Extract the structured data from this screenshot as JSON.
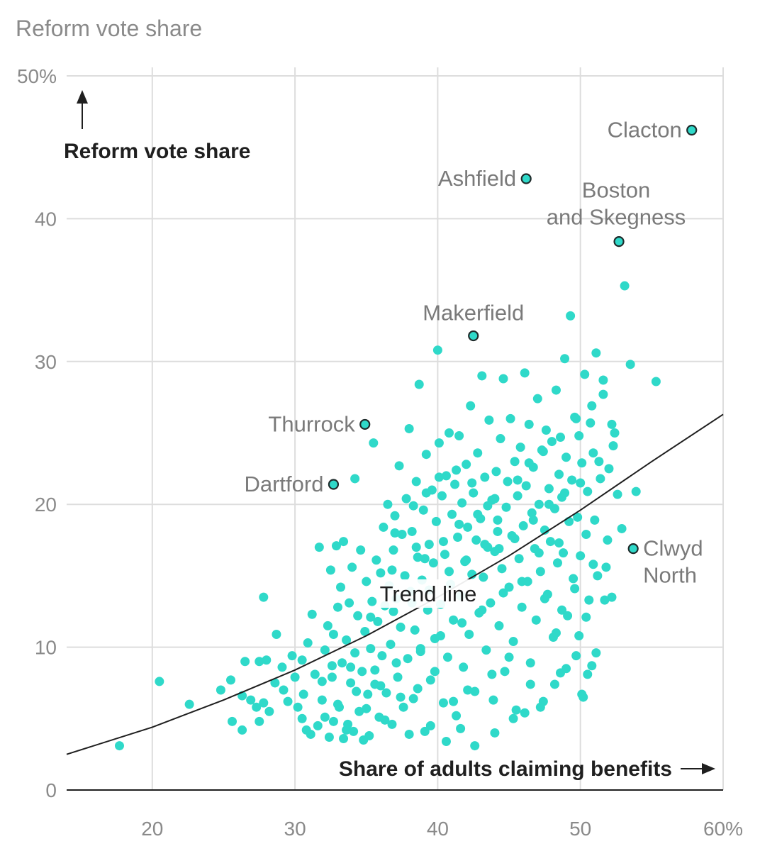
{
  "chart_data": {
    "type": "scatter",
    "title": "Reform vote share",
    "ylabel": "Reform vote share",
    "xlabel": "Share of adults claiming benefits",
    "xlim": [
      14,
      60
    ],
    "ylim": [
      0,
      50
    ],
    "x_ticks": [
      {
        "value": 20,
        "label": "20"
      },
      {
        "value": 30,
        "label": "30"
      },
      {
        "value": 40,
        "label": "40"
      },
      {
        "value": 50,
        "label": "50"
      },
      {
        "value": 60,
        "label": "60%"
      }
    ],
    "y_ticks": [
      {
        "value": 0,
        "label": "0"
      },
      {
        "value": 10,
        "label": "10"
      },
      {
        "value": 20,
        "label": "20"
      },
      {
        "value": 30,
        "label": "30"
      },
      {
        "value": 40,
        "label": "40"
      },
      {
        "value": 50,
        "label": "50%"
      }
    ],
    "grid": true,
    "colors": {
      "point": "#2fd9c9",
      "point_outline": "#1f2b2b",
      "trend": "#1f1f1f",
      "grid": "#dddddd",
      "axis": "#1f1f1f",
      "label": "#7a7a7a"
    },
    "trend_label": "Trend line",
    "trend_line": [
      [
        14,
        2.5
      ],
      [
        20,
        4.4
      ],
      [
        25,
        6.3
      ],
      [
        30,
        8.4
      ],
      [
        35,
        10.8
      ],
      [
        40,
        13.5
      ],
      [
        45,
        16.4
      ],
      [
        50,
        19.6
      ],
      [
        55,
        23.0
      ],
      [
        60,
        26.3
      ]
    ],
    "highlighted": [
      {
        "name": "Clacton",
        "lines": [
          "Clacton"
        ],
        "x": 57.8,
        "y": 46.2
      },
      {
        "name": "Ashfield",
        "lines": [
          "Ashfield"
        ],
        "x": 46.2,
        "y": 42.8
      },
      {
        "name": "Boston and Skegness",
        "lines": [
          "Boston",
          "and Skegness"
        ],
        "x": 52.7,
        "y": 38.4
      },
      {
        "name": "Makerfield",
        "lines": [
          "Makerfield"
        ],
        "x": 42.5,
        "y": 31.8
      },
      {
        "name": "Thurrock",
        "lines": [
          "Thurrock"
        ],
        "x": 34.9,
        "y": 25.6
      },
      {
        "name": "Dartford",
        "lines": [
          "Dartford"
        ],
        "x": 32.7,
        "y": 21.4
      },
      {
        "name": "Clwyd North",
        "lines": [
          "Clwyd",
          "North"
        ],
        "x": 53.7,
        "y": 16.9
      }
    ],
    "points": [
      [
        17.7,
        3.1
      ],
      [
        20.5,
        7.6
      ],
      [
        22.6,
        6.0
      ],
      [
        24.8,
        7.0
      ],
      [
        25.5,
        7.7
      ],
      [
        25.6,
        4.8
      ],
      [
        26.3,
        6.6
      ],
      [
        26.3,
        4.2
      ],
      [
        26.5,
        9.0
      ],
      [
        26.9,
        6.3
      ],
      [
        27.3,
        5.8
      ],
      [
        27.5,
        9.0
      ],
      [
        27.5,
        4.8
      ],
      [
        27.8,
        6.1
      ],
      [
        27.8,
        13.5
      ],
      [
        28.0,
        9.1
      ],
      [
        28.2,
        5.5
      ],
      [
        28.6,
        7.5
      ],
      [
        28.7,
        10.9
      ],
      [
        29.1,
        8.6
      ],
      [
        29.2,
        7.0
      ],
      [
        29.5,
        6.2
      ],
      [
        29.8,
        9.4
      ],
      [
        30.0,
        7.9
      ],
      [
        30.2,
        5.8
      ],
      [
        30.5,
        9.1
      ],
      [
        30.6,
        6.7
      ],
      [
        30.8,
        4.2
      ],
      [
        30.9,
        10.3
      ],
      [
        31.1,
        3.9
      ],
      [
        31.2,
        12.3
      ],
      [
        31.4,
        8.1
      ],
      [
        31.6,
        4.5
      ],
      [
        31.7,
        17.0
      ],
      [
        31.9,
        7.6
      ],
      [
        32.1,
        9.8
      ],
      [
        32.1,
        5.1
      ],
      [
        32.3,
        11.5
      ],
      [
        32.4,
        3.7
      ],
      [
        32.5,
        15.4
      ],
      [
        32.6,
        8.7
      ],
      [
        32.7,
        4.8
      ],
      [
        32.7,
        10.9
      ],
      [
        32.9,
        17.1
      ],
      [
        33.0,
        12.8
      ],
      [
        33.0,
        6.0
      ],
      [
        33.2,
        14.2
      ],
      [
        33.3,
        8.9
      ],
      [
        33.4,
        3.6
      ],
      [
        33.4,
        17.4
      ],
      [
        33.6,
        10.5
      ],
      [
        33.7,
        4.6
      ],
      [
        33.8,
        13.1
      ],
      [
        33.9,
        7.5
      ],
      [
        34.0,
        15.6
      ],
      [
        34.1,
        4.1
      ],
      [
        34.2,
        9.6
      ],
      [
        34.2,
        21.8
      ],
      [
        34.4,
        12.2
      ],
      [
        34.5,
        5.5
      ],
      [
        34.6,
        16.8
      ],
      [
        34.7,
        8.3
      ],
      [
        34.9,
        11.1
      ],
      [
        35.0,
        14.6
      ],
      [
        35.1,
        6.7
      ],
      [
        35.2,
        3.8
      ],
      [
        35.3,
        9.9
      ],
      [
        35.4,
        13.2
      ],
      [
        35.5,
        24.3
      ],
      [
        35.6,
        7.4
      ],
      [
        35.7,
        16.1
      ],
      [
        35.8,
        11.8
      ],
      [
        35.9,
        5.1
      ],
      [
        36.0,
        15.2
      ],
      [
        36.1,
        9.4
      ],
      [
        36.2,
        18.4
      ],
      [
        36.3,
        12.9
      ],
      [
        36.4,
        6.8
      ],
      [
        36.5,
        20.0
      ],
      [
        36.6,
        14.3
      ],
      [
        36.7,
        10.2
      ],
      [
        36.8,
        4.6
      ],
      [
        36.9,
        16.8
      ],
      [
        37.0,
        19.2
      ],
      [
        37.1,
        13.4
      ],
      [
        37.2,
        7.9
      ],
      [
        37.3,
        22.7
      ],
      [
        37.4,
        11.4
      ],
      [
        37.5,
        17.9
      ],
      [
        37.6,
        5.8
      ],
      [
        37.7,
        15.0
      ],
      [
        37.8,
        20.4
      ],
      [
        37.9,
        9.2
      ],
      [
        38.0,
        25.3
      ],
      [
        38.1,
        13.9
      ],
      [
        38.2,
        18.1
      ],
      [
        38.3,
        6.4
      ],
      [
        38.4,
        11.2
      ],
      [
        38.5,
        21.6
      ],
      [
        38.6,
        16.3
      ],
      [
        38.7,
        28.4
      ],
      [
        38.8,
        9.7
      ],
      [
        38.9,
        14.7
      ],
      [
        39.0,
        19.6
      ],
      [
        39.1,
        4.1
      ],
      [
        39.2,
        23.5
      ],
      [
        39.3,
        12.6
      ],
      [
        39.4,
        17.2
      ],
      [
        39.5,
        7.7
      ],
      [
        39.6,
        21.0
      ],
      [
        39.7,
        15.9
      ],
      [
        39.8,
        10.6
      ],
      [
        39.9,
        18.8
      ],
      [
        40.0,
        30.8
      ],
      [
        40.1,
        24.3
      ],
      [
        40.2,
        13.0
      ],
      [
        40.3,
        20.6
      ],
      [
        40.4,
        6.1
      ],
      [
        40.5,
        16.5
      ],
      [
        40.6,
        22.0
      ],
      [
        40.7,
        9.3
      ],
      [
        40.8,
        25.0
      ],
      [
        40.9,
        14.4
      ],
      [
        41.0,
        19.3
      ],
      [
        41.1,
        11.9
      ],
      [
        41.2,
        21.4
      ],
      [
        41.3,
        5.2
      ],
      [
        41.4,
        17.7
      ],
      [
        41.5,
        24.8
      ],
      [
        41.6,
        13.6
      ],
      [
        41.7,
        20.1
      ],
      [
        41.8,
        8.6
      ],
      [
        41.9,
        16.0
      ],
      [
        42.0,
        22.8
      ],
      [
        42.1,
        18.4
      ],
      [
        42.2,
        10.9
      ],
      [
        42.3,
        26.9
      ],
      [
        42.4,
        15.1
      ],
      [
        42.5,
        20.8
      ],
      [
        42.6,
        6.9
      ],
      [
        42.7,
        17.5
      ],
      [
        42.8,
        23.6
      ],
      [
        42.9,
        12.4
      ],
      [
        43.0,
        19.0
      ],
      [
        43.1,
        29.0
      ],
      [
        43.2,
        14.9
      ],
      [
        43.3,
        21.9
      ],
      [
        43.4,
        9.8
      ],
      [
        43.5,
        17.0
      ],
      [
        43.6,
        25.9
      ],
      [
        43.7,
        13.1
      ],
      [
        43.8,
        20.3
      ],
      [
        43.9,
        6.3
      ],
      [
        44.0,
        16.7
      ],
      [
        44.1,
        22.3
      ],
      [
        44.2,
        18.9
      ],
      [
        44.3,
        11.5
      ],
      [
        44.4,
        24.6
      ],
      [
        44.5,
        15.5
      ],
      [
        44.6,
        28.8
      ],
      [
        44.7,
        8.3
      ],
      [
        44.8,
        19.8
      ],
      [
        44.9,
        21.6
      ],
      [
        45.0,
        14.2
      ],
      [
        45.1,
        26.0
      ],
      [
        45.2,
        17.8
      ],
      [
        45.3,
        10.4
      ],
      [
        45.4,
        23.0
      ],
      [
        45.5,
        5.6
      ],
      [
        45.6,
        20.6
      ],
      [
        45.7,
        16.2
      ],
      [
        45.8,
        24.0
      ],
      [
        45.9,
        12.8
      ],
      [
        46.0,
        18.5
      ],
      [
        46.1,
        29.2
      ],
      [
        46.2,
        21.3
      ],
      [
        46.3,
        14.6
      ],
      [
        46.4,
        25.6
      ],
      [
        46.5,
        8.9
      ],
      [
        46.6,
        19.4
      ],
      [
        46.7,
        22.6
      ],
      [
        46.8,
        16.9
      ],
      [
        46.9,
        11.9
      ],
      [
        47.0,
        27.4
      ],
      [
        47.1,
        20.0
      ],
      [
        47.2,
        15.3
      ],
      [
        47.3,
        23.8
      ],
      [
        47.4,
        6.2
      ],
      [
        47.5,
        18.2
      ],
      [
        47.6,
        25.2
      ],
      [
        47.7,
        13.7
      ],
      [
        47.8,
        21.1
      ],
      [
        47.9,
        17.4
      ],
      [
        48.0,
        24.4
      ],
      [
        48.1,
        10.7
      ],
      [
        48.2,
        19.7
      ],
      [
        48.3,
        28.0
      ],
      [
        48.4,
        15.9
      ],
      [
        48.5,
        22.1
      ],
      [
        48.6,
        8.2
      ],
      [
        48.7,
        20.5
      ],
      [
        48.8,
        16.6
      ],
      [
        48.9,
        30.2
      ],
      [
        49.0,
        23.3
      ],
      [
        49.1,
        12.2
      ],
      [
        49.2,
        18.8
      ],
      [
        49.3,
        33.2
      ],
      [
        49.4,
        21.7
      ],
      [
        49.5,
        14.8
      ],
      [
        49.6,
        26.1
      ],
      [
        49.7,
        9.4
      ],
      [
        49.8,
        19.1
      ],
      [
        49.9,
        24.8
      ],
      [
        50.0,
        16.4
      ],
      [
        50.1,
        22.9
      ],
      [
        50.2,
        6.5
      ],
      [
        50.3,
        29.1
      ],
      [
        50.4,
        17.9
      ],
      [
        50.5,
        20.9
      ],
      [
        50.6,
        13.3
      ],
      [
        50.7,
        25.7
      ],
      [
        50.8,
        8.7
      ],
      [
        50.9,
        23.6
      ],
      [
        51.0,
        18.9
      ],
      [
        51.1,
        30.6
      ],
      [
        51.2,
        15.0
      ],
      [
        51.4,
        21.8
      ],
      [
        51.6,
        28.7
      ],
      [
        51.8,
        15.6
      ],
      [
        52.0,
        22.5
      ],
      [
        52.2,
        13.5
      ],
      [
        52.4,
        25.0
      ],
      [
        52.6,
        20.7
      ],
      [
        53.1,
        35.3
      ],
      [
        53.5,
        29.8
      ],
      [
        53.9,
        20.9
      ],
      [
        55.3,
        28.6
      ],
      [
        33.6,
        4.2
      ],
      [
        34.8,
        3.5
      ],
      [
        36.3,
        4.9
      ],
      [
        38.0,
        3.9
      ],
      [
        39.5,
        4.5
      ],
      [
        40.6,
        3.4
      ],
      [
        41.6,
        4.3
      ],
      [
        42.6,
        3.1
      ],
      [
        44.0,
        4.0
      ],
      [
        45.3,
        5.0
      ],
      [
        46.1,
        5.4
      ],
      [
        47.2,
        5.8
      ],
      [
        48.2,
        7.4
      ],
      [
        49.0,
        8.5
      ],
      [
        50.1,
        6.7
      ],
      [
        50.5,
        8.1
      ],
      [
        51.1,
        9.6
      ],
      [
        47.5,
        13.4
      ],
      [
        48.7,
        12.6
      ],
      [
        50.4,
        12.1
      ],
      [
        51.7,
        13.3
      ],
      [
        49.9,
        10.8
      ],
      [
        48.3,
        11.0
      ],
      [
        46.5,
        7.4
      ],
      [
        45.0,
        9.3
      ],
      [
        43.8,
        8.1
      ],
      [
        42.1,
        7.0
      ],
      [
        41.1,
        6.2
      ],
      [
        39.8,
        8.3
      ],
      [
        38.6,
        7.1
      ],
      [
        37.4,
        6.5
      ],
      [
        36.0,
        7.3
      ],
      [
        35.0,
        5.7
      ],
      [
        34.3,
        6.9
      ],
      [
        33.1,
        5.8
      ],
      [
        31.9,
        6.3
      ],
      [
        30.5,
        5.0
      ],
      [
        32.6,
        7.9
      ],
      [
        33.9,
        8.6
      ],
      [
        35.6,
        8.4
      ],
      [
        37.1,
        8.9
      ],
      [
        38.8,
        9.9
      ],
      [
        40.2,
        10.8
      ],
      [
        41.7,
        11.7
      ],
      [
        43.1,
        12.6
      ],
      [
        44.6,
        13.8
      ],
      [
        45.9,
        14.6
      ],
      [
        47.1,
        16.6
      ],
      [
        48.5,
        17.3
      ],
      [
        49.6,
        14.1
      ],
      [
        50.9,
        15.8
      ],
      [
        51.9,
        17.5
      ],
      [
        52.9,
        18.3
      ],
      [
        44.2,
        18.1
      ],
      [
        43.5,
        19.9
      ],
      [
        42.4,
        21.5
      ],
      [
        41.3,
        22.4
      ],
      [
        40.1,
        21.9
      ],
      [
        39.2,
        20.8
      ],
      [
        38.3,
        19.9
      ],
      [
        37.0,
        18.0
      ],
      [
        36.8,
        15.4
      ],
      [
        35.3,
        12.1
      ],
      [
        36.9,
        12.5
      ],
      [
        38.2,
        13.1
      ],
      [
        39.4,
        14.0
      ],
      [
        40.8,
        15.3
      ],
      [
        42.0,
        16.1
      ],
      [
        43.3,
        17.2
      ],
      [
        44.3,
        16.9
      ],
      [
        45.4,
        17.6
      ],
      [
        46.7,
        18.9
      ],
      [
        47.8,
        20.0
      ],
      [
        48.9,
        20.8
      ],
      [
        50.0,
        21.5
      ],
      [
        51.3,
        23.0
      ],
      [
        52.3,
        24.1
      ],
      [
        38.5,
        17.0
      ],
      [
        39.1,
        16.2
      ],
      [
        40.4,
        17.4
      ],
      [
        41.5,
        18.6
      ],
      [
        42.8,
        19.3
      ],
      [
        44.0,
        20.4
      ],
      [
        45.6,
        21.7
      ],
      [
        46.4,
        22.9
      ],
      [
        47.4,
        23.7
      ],
      [
        48.6,
        24.7
      ],
      [
        49.7,
        26.0
      ],
      [
        50.8,
        26.9
      ],
      [
        51.6,
        27.7
      ],
      [
        52.2,
        25.6
      ]
    ]
  }
}
